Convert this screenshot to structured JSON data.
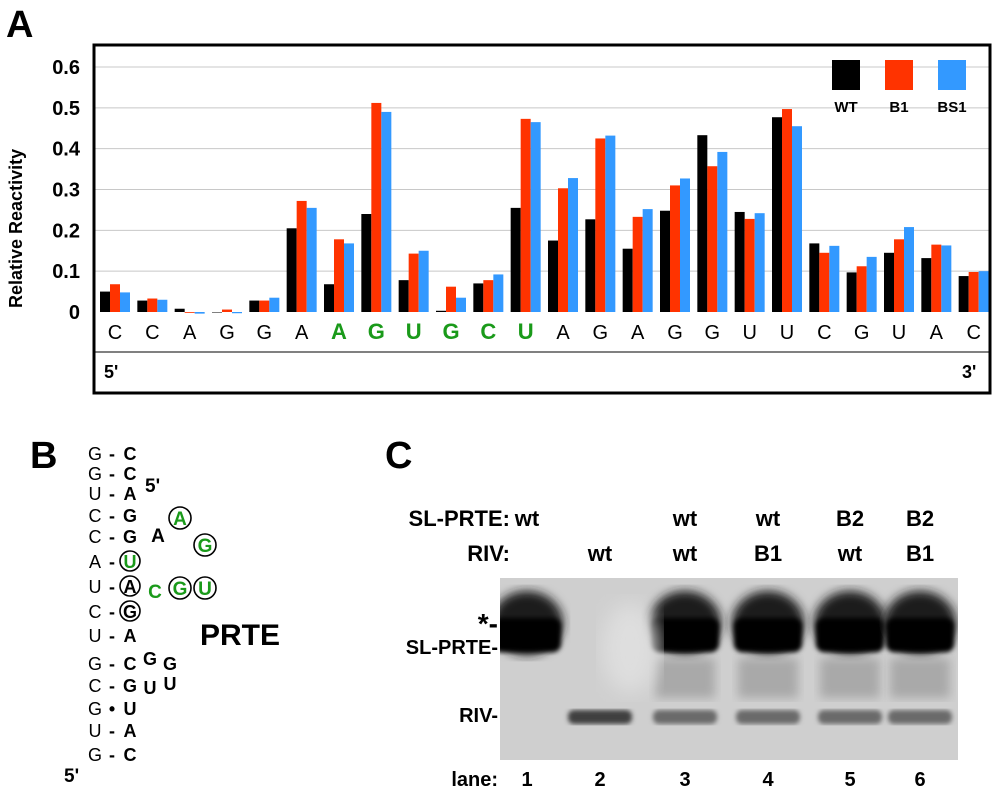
{
  "panels": {
    "a": "A",
    "b": "B",
    "c": "C"
  },
  "chart_data": {
    "type": "bar",
    "ylabel": "Relative Reactivity",
    "ylim": [
      0,
      0.6
    ],
    "yticks": [
      "0",
      "0.1",
      "0.2",
      "0.3",
      "0.4",
      "0.5",
      "0.6"
    ],
    "grid": true,
    "legend_position": "top-right",
    "categories": [
      "C",
      "C",
      "A",
      "G",
      "G",
      "A",
      "A",
      "G",
      "U",
      "G",
      "C",
      "U",
      "A",
      "G",
      "A",
      "G",
      "G",
      "U",
      "U",
      "C",
      "G",
      "U",
      "A",
      "C"
    ],
    "highlight_categories_idx": [
      6,
      7,
      8,
      9,
      10,
      11
    ],
    "highlight_color": "#1a9a1a",
    "end_labels": {
      "left": "5'",
      "right": "3'"
    },
    "series": [
      {
        "name": "WT",
        "color": "#000000",
        "values": [
          0.05,
          0.028,
          0.008,
          0.0,
          0.028,
          0.205,
          0.068,
          0.24,
          0.078,
          0.003,
          0.07,
          0.255,
          0.175,
          0.227,
          0.155,
          0.248,
          0.433,
          0.245,
          0.477,
          0.168,
          0.097,
          0.145,
          0.132,
          0.088
        ]
      },
      {
        "name": "B1",
        "color": "#ff3300",
        "values": [
          0.068,
          0.033,
          -0.002,
          0.006,
          0.028,
          0.272,
          0.178,
          0.512,
          0.143,
          0.062,
          0.078,
          0.473,
          0.303,
          0.425,
          0.233,
          0.31,
          0.357,
          0.228,
          0.497,
          0.145,
          0.112,
          0.178,
          0.165,
          0.098
        ]
      },
      {
        "name": "BS1",
        "color": "#3399ff",
        "values": [
          0.048,
          0.03,
          -0.004,
          -0.003,
          0.035,
          0.255,
          0.168,
          0.49,
          0.15,
          0.035,
          0.092,
          0.465,
          0.328,
          0.432,
          0.252,
          0.327,
          0.392,
          0.242,
          0.455,
          0.162,
          0.135,
          0.208,
          0.163,
          0.1
        ]
      }
    ]
  },
  "structure": {
    "label": "PRTE",
    "five_prime_top": "5'",
    "five_prime_bottom": "5'",
    "rows": [
      {
        "l": "G",
        "j": "-",
        "r": "C"
      },
      {
        "l": "G",
        "j": "-",
        "r": "C"
      },
      {
        "l": "U",
        "j": "-",
        "r": "A"
      },
      {
        "l": "C",
        "j": "-",
        "r": "G"
      },
      {
        "l": "C",
        "j": "-",
        "r": "G"
      },
      {
        "l": "A",
        "j": "-",
        "r": "U"
      },
      {
        "l": "U",
        "j": "-",
        "r": "A"
      },
      {
        "l": "C",
        "j": "-",
        "r": "G"
      },
      {
        "l": "U",
        "j": "-",
        "r": "A"
      },
      {
        "l": "G",
        "j": "-",
        "r": "C"
      },
      {
        "l": "C",
        "j": "-",
        "r": "G"
      },
      {
        "l": "G",
        "j": "•",
        "r": "U"
      },
      {
        "l": "U",
        "j": "-",
        "r": "A"
      },
      {
        "l": "G",
        "j": "-",
        "r": "C"
      }
    ],
    "loop_top": [
      "A",
      "A",
      "G",
      "U",
      "G",
      "C"
    ],
    "loop_bottom": [
      "G",
      "G",
      "U",
      "U"
    ]
  },
  "gel": {
    "row_sl_prte_label": "SL-PRTE:",
    "row_riv_label": "RIV:",
    "sl_prte": [
      "wt",
      "",
      "wt",
      "wt",
      "B2",
      "B2"
    ],
    "riv": [
      "",
      "wt",
      "wt",
      "B1",
      "wt",
      "B1"
    ],
    "band_labels": {
      "star": "*-",
      "sl_prte": "SL-PRTE-",
      "riv": "RIV-"
    },
    "lane_label": "lane:",
    "lanes": [
      "1",
      "2",
      "3",
      "4",
      "5",
      "6"
    ]
  }
}
